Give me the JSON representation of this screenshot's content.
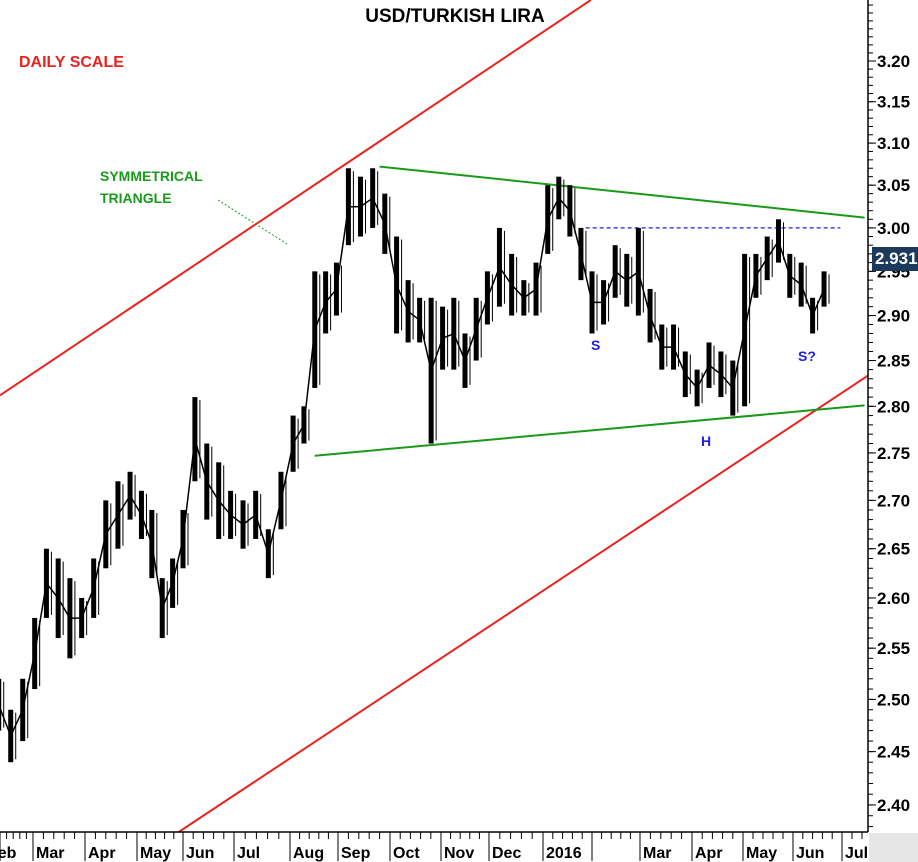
{
  "chart_data": {
    "type": "candlestick",
    "title": "USD/TURKISH LIRA",
    "subtitle": "DAILY SCALE",
    "y_scale": "log",
    "ylim": [
      2.37,
      3.28
    ],
    "y_ticks": [
      "3.20",
      "3.15",
      "3.10",
      "3.05",
      "3.00",
      "2.95",
      "2.90",
      "2.85",
      "2.80",
      "2.75",
      "2.70",
      "2.65",
      "2.60",
      "2.55",
      "2.50",
      "2.45",
      "2.40"
    ],
    "x_ticks": [
      {
        "date": "2015-02-01",
        "label": "Feb"
      },
      {
        "date": "2015-03-01",
        "label": "Mar"
      },
      {
        "date": "2015-04-01",
        "label": "Apr"
      },
      {
        "date": "2015-05-01",
        "label": "May"
      },
      {
        "date": "2015-06-01",
        "label": "Jun"
      },
      {
        "date": "2015-07-01",
        "label": "Jul"
      },
      {
        "date": "2015-08-01",
        "label": "Aug"
      },
      {
        "date": "2015-09-01",
        "label": "Sep"
      },
      {
        "date": "2015-10-01",
        "label": "Oct"
      },
      {
        "date": "2015-11-01",
        "label": "Nov"
      },
      {
        "date": "2015-12-01",
        "label": "Dec"
      },
      {
        "date": "2016-01-01",
        "label": "2016"
      },
      {
        "date": "2016-02-01",
        "label": ""
      },
      {
        "date": "2016-03-01",
        "label": "Mar"
      },
      {
        "date": "2016-04-01",
        "label": "Apr"
      },
      {
        "date": "2016-05-01",
        "label": "May"
      },
      {
        "date": "2016-06-01",
        "label": "Jun"
      },
      {
        "date": "2016-07-01",
        "label": "Jul"
      }
    ],
    "last_price": "2.931",
    "series_color": "#000000",
    "bars": [
      [
        "2015-02-09",
        2.52,
        2.47
      ],
      [
        "2015-02-16",
        2.49,
        2.44
      ],
      [
        "2015-02-23",
        2.52,
        2.46
      ],
      [
        "2015-03-02",
        2.58,
        2.51
      ],
      [
        "2015-03-09",
        2.65,
        2.58
      ],
      [
        "2015-03-16",
        2.64,
        2.56
      ],
      [
        "2015-03-23",
        2.62,
        2.54
      ],
      [
        "2015-03-30",
        2.6,
        2.56
      ],
      [
        "2015-04-06",
        2.64,
        2.58
      ],
      [
        "2015-04-13",
        2.7,
        2.63
      ],
      [
        "2015-04-20",
        2.72,
        2.65
      ],
      [
        "2015-04-27",
        2.73,
        2.68
      ],
      [
        "2015-05-04",
        2.71,
        2.66
      ],
      [
        "2015-05-11",
        2.69,
        2.62
      ],
      [
        "2015-05-18",
        2.62,
        2.56
      ],
      [
        "2015-05-25",
        2.64,
        2.59
      ],
      [
        "2015-06-01",
        2.69,
        2.63
      ],
      [
        "2015-06-08",
        2.81,
        2.72
      ],
      [
        "2015-06-15",
        2.76,
        2.68
      ],
      [
        "2015-06-22",
        2.74,
        2.66
      ],
      [
        "2015-06-29",
        2.71,
        2.66
      ],
      [
        "2015-07-06",
        2.7,
        2.65
      ],
      [
        "2015-07-13",
        2.71,
        2.66
      ],
      [
        "2015-07-20",
        2.67,
        2.62
      ],
      [
        "2015-07-27",
        2.73,
        2.67
      ],
      [
        "2015-08-03",
        2.79,
        2.73
      ],
      [
        "2015-08-10",
        2.8,
        2.76
      ],
      [
        "2015-08-17",
        2.95,
        2.82
      ],
      [
        "2015-08-24",
        2.95,
        2.88
      ],
      [
        "2015-08-31",
        2.96,
        2.9
      ],
      [
        "2015-09-07",
        3.07,
        2.98
      ],
      [
        "2015-09-14",
        3.06,
        2.99
      ],
      [
        "2015-09-21",
        3.07,
        3.0
      ],
      [
        "2015-09-28",
        3.04,
        2.97
      ],
      [
        "2015-10-05",
        2.99,
        2.88
      ],
      [
        "2015-10-12",
        2.94,
        2.87
      ],
      [
        "2015-10-19",
        2.92,
        2.87
      ],
      [
        "2015-10-26",
        2.92,
        2.76
      ],
      [
        "2015-11-02",
        2.91,
        2.84
      ],
      [
        "2015-11-09",
        2.92,
        2.84
      ],
      [
        "2015-11-16",
        2.88,
        2.82
      ],
      [
        "2015-11-23",
        2.92,
        2.85
      ],
      [
        "2015-11-30",
        2.95,
        2.89
      ],
      [
        "2015-12-07",
        3.0,
        2.91
      ],
      [
        "2015-12-14",
        2.97,
        2.9
      ],
      [
        "2015-12-21",
        2.94,
        2.9
      ],
      [
        "2015-12-28",
        2.96,
        2.9
      ],
      [
        "2016-01-04",
        3.05,
        2.97
      ],
      [
        "2016-01-11",
        3.06,
        3.01
      ],
      [
        "2016-01-18",
        3.05,
        2.99
      ],
      [
        "2016-01-25",
        3.0,
        2.94
      ],
      [
        "2016-02-01",
        2.95,
        2.88
      ],
      [
        "2016-02-08",
        2.94,
        2.89
      ],
      [
        "2016-02-15",
        2.98,
        2.92
      ],
      [
        "2016-02-22",
        2.97,
        2.91
      ],
      [
        "2016-02-29",
        3.0,
        2.9
      ],
      [
        "2016-03-07",
        2.93,
        2.87
      ],
      [
        "2016-03-14",
        2.89,
        2.84
      ],
      [
        "2016-03-21",
        2.89,
        2.84
      ],
      [
        "2016-03-28",
        2.86,
        2.81
      ],
      [
        "2016-04-04",
        2.84,
        2.8
      ],
      [
        "2016-04-11",
        2.87,
        2.82
      ],
      [
        "2016-04-18",
        2.86,
        2.81
      ],
      [
        "2016-04-25",
        2.85,
        2.79
      ],
      [
        "2016-05-02",
        2.97,
        2.8
      ],
      [
        "2016-05-09",
        2.97,
        2.92
      ],
      [
        "2016-05-16",
        2.99,
        2.94
      ],
      [
        "2016-05-23",
        3.01,
        2.96
      ],
      [
        "2016-05-30",
        2.97,
        2.92
      ],
      [
        "2016-06-06",
        2.96,
        2.91
      ],
      [
        "2016-06-13",
        2.92,
        2.88
      ],
      [
        "2016-06-20",
        2.95,
        2.91
      ]
    ],
    "trendlines": [
      {
        "name": "upper-channel",
        "color": "#e8231f",
        "from": [
          "2015-02-01",
          2.801
        ],
        "to": [
          "2016-01-31",
          3.276
        ]
      },
      {
        "name": "lower-channel",
        "color": "#e8231f",
        "from": [
          "2015-05-28",
          2.374
        ],
        "to": [
          "2016-07-15",
          2.831
        ]
      },
      {
        "name": "triangle-upper",
        "color": "#1a9a1a",
        "from": [
          "2015-09-25",
          3.072
        ],
        "to": [
          "2016-07-15",
          3.012
        ]
      },
      {
        "name": "triangle-lower",
        "color": "#1a9a1a",
        "from": [
          "2015-08-17",
          2.747
        ],
        "to": [
          "2016-07-15",
          2.801
        ]
      },
      {
        "name": "neckline",
        "color": "#1f1fe6",
        "style": "dotted",
        "from": [
          "2016-01-28",
          3.0
        ],
        "to": [
          "2016-06-30",
          3.0
        ]
      }
    ],
    "annotations": {
      "triangle": [
        "SYMMETRICAL",
        "TRIANGLE"
      ],
      "left_shoulder": "S",
      "head": "H",
      "right_shoulder": "S?"
    },
    "colors": {
      "title": "#000000",
      "scale_label": "#e8231f",
      "triangle_label": "#1a9a1a",
      "pattern_label": "#1f1fe6",
      "price_badge": "#1b3a5c"
    }
  }
}
